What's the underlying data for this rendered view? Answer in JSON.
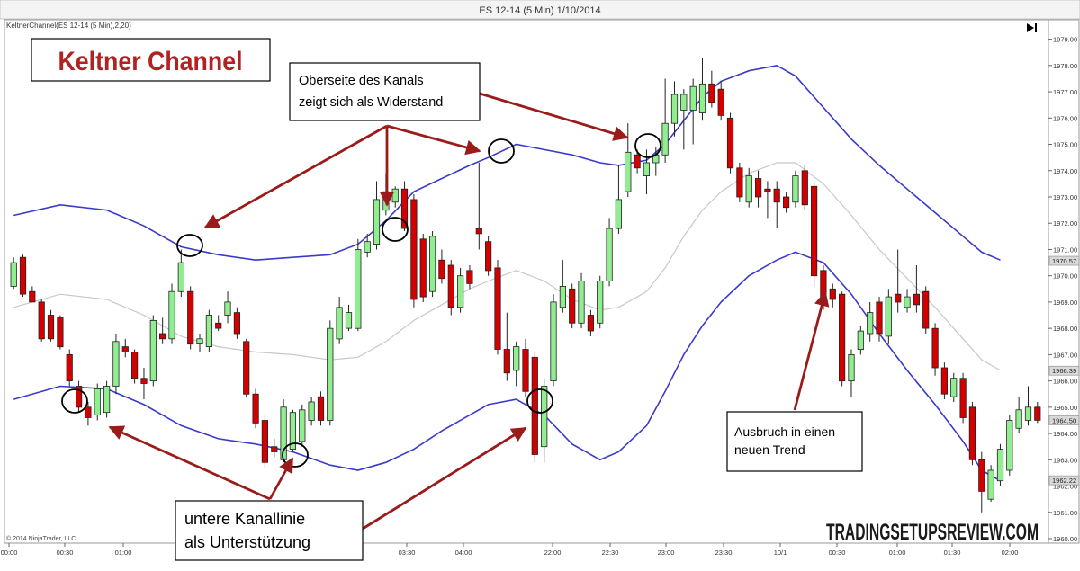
{
  "window": {
    "title": "ES 12-14 (5 Min)  1/10/2014",
    "indicator_label": "KeltnerChannel(ES 12-14 (5 Min),2,20)",
    "copyright": "© 2014 NinjaTrader, LLC",
    "play_icon": "play-icon"
  },
  "annotations": {
    "main_title": "Keltner Channel",
    "resistance_line1": "Oberseite des Kanals",
    "resistance_line2": "zeigt sich als Widerstand",
    "support_line1": "untere Kanallinie",
    "support_line2": "als Unterstützung",
    "breakout_line1": "Ausbruch in einen",
    "breakout_line2": "neuen Trend",
    "watermark": "TRADINGSETUPSREVIEW.COM"
  },
  "colors": {
    "up": "#90ee90",
    "down": "#d40000",
    "channel": "#3a3ac8",
    "midline": "#c8c8c8",
    "arrow": "#9b1b1b",
    "title": "#b22222"
  },
  "chart_data": {
    "type": "candlestick",
    "title": "ES 12-14 (5 Min)  1/10/2014",
    "ylim": [
      1960,
      1979.5
    ],
    "y_ticks": [
      "1960.00",
      "1961.00",
      "1962.00",
      "1963.00",
      "1964.00",
      "1965.00",
      "1966.00",
      "1967.00",
      "1968.00",
      "1969.00",
      "1970.00",
      "1971.00",
      "1972.00",
      "1973.00",
      "1974.00",
      "1975.00",
      "1976.00",
      "1977.00",
      "1978.00",
      "1979.00"
    ],
    "x_ticks": [
      "00:00",
      "00:30",
      "01:00",
      "03:30",
      "04:00",
      "22:00",
      "22:30",
      "23:00",
      "23:30",
      "10/1",
      "00:30",
      "01:00",
      "01:30",
      "02:00"
    ],
    "price_markers": [
      {
        "label": "1970.57",
        "value": 1970.57
      },
      {
        "label": "1966.39",
        "value": 1966.39
      },
      {
        "label": "1964.50",
        "value": 1964.5
      },
      {
        "label": "1962.22",
        "value": 1962.22
      }
    ],
    "candles": [
      {
        "o": 1969.6,
        "h": 1970.7,
        "l": 1969.5,
        "c": 1970.5
      },
      {
        "o": 1970.7,
        "h": 1970.8,
        "l": 1969.2,
        "c": 1969.3
      },
      {
        "o": 1969.4,
        "h": 1969.6,
        "l": 1969.0,
        "c": 1969.0
      },
      {
        "o": 1969.0,
        "h": 1969.1,
        "l": 1967.5,
        "c": 1967.6
      },
      {
        "o": 1968.5,
        "h": 1968.7,
        "l": 1967.5,
        "c": 1967.6
      },
      {
        "o": 1968.4,
        "h": 1968.5,
        "l": 1967.2,
        "c": 1967.3
      },
      {
        "o": 1967.0,
        "h": 1967.2,
        "l": 1965.8,
        "c": 1966.0
      },
      {
        "o": 1965.8,
        "h": 1966.0,
        "l": 1964.8,
        "c": 1965.0
      },
      {
        "o": 1965.0,
        "h": 1965.2,
        "l": 1964.3,
        "c": 1964.6
      },
      {
        "o": 1964.7,
        "h": 1965.9,
        "l": 1964.5,
        "c": 1965.7
      },
      {
        "o": 1964.8,
        "h": 1966.0,
        "l": 1964.6,
        "c": 1965.8
      },
      {
        "o": 1965.8,
        "h": 1967.8,
        "l": 1965.5,
        "c": 1967.5
      },
      {
        "o": 1967.3,
        "h": 1967.6,
        "l": 1966.9,
        "c": 1967.1
      },
      {
        "o": 1967.1,
        "h": 1967.2,
        "l": 1965.9,
        "c": 1966.1
      },
      {
        "o": 1966.1,
        "h": 1966.5,
        "l": 1965.3,
        "c": 1965.9
      },
      {
        "o": 1966.0,
        "h": 1968.5,
        "l": 1965.8,
        "c": 1968.3
      },
      {
        "o": 1967.8,
        "h": 1968.4,
        "l": 1967.4,
        "c": 1967.6
      },
      {
        "o": 1967.6,
        "h": 1969.7,
        "l": 1967.4,
        "c": 1969.4
      },
      {
        "o": 1969.4,
        "h": 1971.0,
        "l": 1969.2,
        "c": 1970.5
      },
      {
        "o": 1969.4,
        "h": 1969.6,
        "l": 1967.2,
        "c": 1967.4
      },
      {
        "o": 1967.4,
        "h": 1967.8,
        "l": 1967.1,
        "c": 1967.6
      },
      {
        "o": 1967.3,
        "h": 1968.7,
        "l": 1967.1,
        "c": 1968.5
      },
      {
        "o": 1968.2,
        "h": 1968.5,
        "l": 1967.9,
        "c": 1968.0
      },
      {
        "o": 1968.5,
        "h": 1969.4,
        "l": 1968.2,
        "c": 1969.0
      },
      {
        "o": 1968.6,
        "h": 1968.8,
        "l": 1967.6,
        "c": 1967.8
      },
      {
        "o": 1967.5,
        "h": 1967.6,
        "l": 1965.4,
        "c": 1965.5
      },
      {
        "o": 1965.5,
        "h": 1965.7,
        "l": 1964.2,
        "c": 1964.4
      },
      {
        "o": 1964.5,
        "h": 1964.7,
        "l": 1962.7,
        "c": 1962.9
      },
      {
        "o": 1963.5,
        "h": 1963.8,
        "l": 1963.1,
        "c": 1963.3
      },
      {
        "o": 1963.0,
        "h": 1965.3,
        "l": 1962.9,
        "c": 1965.0
      },
      {
        "o": 1963.4,
        "h": 1964.9,
        "l": 1963.3,
        "c": 1964.8
      },
      {
        "o": 1963.7,
        "h": 1965.1,
        "l": 1963.5,
        "c": 1964.9
      },
      {
        "o": 1964.5,
        "h": 1965.4,
        "l": 1964.3,
        "c": 1965.2
      },
      {
        "o": 1965.4,
        "h": 1965.6,
        "l": 1964.3,
        "c": 1964.5
      },
      {
        "o": 1964.5,
        "h": 1968.3,
        "l": 1964.3,
        "c": 1968.0
      },
      {
        "o": 1967.6,
        "h": 1969.2,
        "l": 1967.4,
        "c": 1968.8
      },
      {
        "o": 1968.0,
        "h": 1968.9,
        "l": 1967.9,
        "c": 1968.6
      },
      {
        "o": 1968.0,
        "h": 1971.4,
        "l": 1967.9,
        "c": 1971.0
      },
      {
        "o": 1970.9,
        "h": 1971.6,
        "l": 1970.7,
        "c": 1971.3
      },
      {
        "o": 1971.2,
        "h": 1973.6,
        "l": 1971.0,
        "c": 1972.9
      },
      {
        "o": 1972.5,
        "h": 1973.9,
        "l": 1972.3,
        "c": 1973.2
      },
      {
        "o": 1972.8,
        "h": 1973.4,
        "l": 1972.6,
        "c": 1973.3
      },
      {
        "o": 1973.3,
        "h": 1973.6,
        "l": 1971.7,
        "c": 1971.8
      },
      {
        "o": 1972.9,
        "h": 1973.1,
        "l": 1968.8,
        "c": 1969.1
      },
      {
        "o": 1971.4,
        "h": 1971.6,
        "l": 1969.0,
        "c": 1969.2
      },
      {
        "o": 1969.4,
        "h": 1971.7,
        "l": 1969.2,
        "c": 1971.5
      },
      {
        "o": 1970.6,
        "h": 1971.0,
        "l": 1969.7,
        "c": 1969.9
      },
      {
        "o": 1970.4,
        "h": 1970.6,
        "l": 1968.5,
        "c": 1968.8
      },
      {
        "o": 1968.8,
        "h": 1970.3,
        "l": 1968.6,
        "c": 1970.0
      },
      {
        "o": 1970.2,
        "h": 1970.4,
        "l": 1969.5,
        "c": 1969.7
      },
      {
        "o": 1971.8,
        "h": 1974.3,
        "l": 1971.0,
        "c": 1971.6
      },
      {
        "o": 1971.3,
        "h": 1971.5,
        "l": 1970.0,
        "c": 1970.2
      },
      {
        "o": 1970.3,
        "h": 1970.6,
        "l": 1967.0,
        "c": 1967.2
      },
      {
        "o": 1967.2,
        "h": 1968.6,
        "l": 1966.0,
        "c": 1966.3
      },
      {
        "o": 1966.4,
        "h": 1967.5,
        "l": 1965.8,
        "c": 1967.3
      },
      {
        "o": 1967.2,
        "h": 1967.6,
        "l": 1965.4,
        "c": 1965.6
      },
      {
        "o": 1966.9,
        "h": 1967.1,
        "l": 1962.9,
        "c": 1963.2
      },
      {
        "o": 1963.5,
        "h": 1966.1,
        "l": 1962.9,
        "c": 1965.8
      },
      {
        "o": 1966.0,
        "h": 1969.3,
        "l": 1965.8,
        "c": 1969.0
      },
      {
        "o": 1968.8,
        "h": 1970.6,
        "l": 1968.6,
        "c": 1969.6
      },
      {
        "o": 1969.5,
        "h": 1969.7,
        "l": 1968.0,
        "c": 1968.2
      },
      {
        "o": 1968.2,
        "h": 1970.1,
        "l": 1968.0,
        "c": 1969.8
      },
      {
        "o": 1968.5,
        "h": 1968.7,
        "l": 1967.7,
        "c": 1967.9
      },
      {
        "o": 1968.2,
        "h": 1970.0,
        "l": 1968.0,
        "c": 1969.8
      },
      {
        "o": 1969.8,
        "h": 1972.2,
        "l": 1969.6,
        "c": 1971.8
      },
      {
        "o": 1971.8,
        "h": 1974.2,
        "l": 1971.6,
        "c": 1972.9
      },
      {
        "o": 1973.2,
        "h": 1975.8,
        "l": 1973.0,
        "c": 1974.7
      },
      {
        "o": 1974.6,
        "h": 1974.8,
        "l": 1973.9,
        "c": 1974.1
      },
      {
        "o": 1973.8,
        "h": 1974.8,
        "l": 1973.1,
        "c": 1974.3
      },
      {
        "o": 1974.3,
        "h": 1974.9,
        "l": 1973.8,
        "c": 1974.6
      },
      {
        "o": 1974.6,
        "h": 1977.5,
        "l": 1974.3,
        "c": 1975.8
      },
      {
        "o": 1975.8,
        "h": 1977.4,
        "l": 1975.3,
        "c": 1976.9
      },
      {
        "o": 1976.3,
        "h": 1977.1,
        "l": 1974.8,
        "c": 1976.9
      },
      {
        "o": 1976.3,
        "h": 1977.5,
        "l": 1975.0,
        "c": 1977.2
      },
      {
        "o": 1976.2,
        "h": 1978.3,
        "l": 1975.9,
        "c": 1977.3
      },
      {
        "o": 1977.3,
        "h": 1977.8,
        "l": 1976.4,
        "c": 1976.6
      },
      {
        "o": 1977.1,
        "h": 1977.4,
        "l": 1975.9,
        "c": 1976.1
      },
      {
        "o": 1976.0,
        "h": 1976.2,
        "l": 1973.9,
        "c": 1974.1
      },
      {
        "o": 1974.1,
        "h": 1974.3,
        "l": 1972.8,
        "c": 1973.0
      },
      {
        "o": 1972.8,
        "h": 1974.1,
        "l": 1972.6,
        "c": 1973.8
      },
      {
        "o": 1973.7,
        "h": 1974.0,
        "l": 1972.6,
        "c": 1973.0
      },
      {
        "o": 1973.3,
        "h": 1973.6,
        "l": 1972.2,
        "c": 1973.2
      },
      {
        "o": 1973.3,
        "h": 1973.6,
        "l": 1971.8,
        "c": 1972.8
      },
      {
        "o": 1973.0,
        "h": 1973.2,
        "l": 1972.4,
        "c": 1972.6
      },
      {
        "o": 1972.8,
        "h": 1974.0,
        "l": 1972.6,
        "c": 1973.8
      },
      {
        "o": 1974.0,
        "h": 1974.2,
        "l": 1972.5,
        "c": 1972.7
      },
      {
        "o": 1973.4,
        "h": 1973.6,
        "l": 1969.6,
        "c": 1970.0
      },
      {
        "o": 1970.2,
        "h": 1970.4,
        "l": 1968.7,
        "c": 1969.0
      },
      {
        "o": 1969.5,
        "h": 1969.7,
        "l": 1968.8,
        "c": 1969.1
      },
      {
        "o": 1969.3,
        "h": 1969.4,
        "l": 1965.8,
        "c": 1966.0
      },
      {
        "o": 1966.0,
        "h": 1967.2,
        "l": 1965.4,
        "c": 1967.0
      },
      {
        "o": 1967.2,
        "h": 1968.1,
        "l": 1967.0,
        "c": 1967.9
      },
      {
        "o": 1967.8,
        "h": 1969.0,
        "l": 1967.5,
        "c": 1968.6
      },
      {
        "o": 1969.0,
        "h": 1969.2,
        "l": 1967.5,
        "c": 1967.8
      },
      {
        "o": 1967.7,
        "h": 1969.5,
        "l": 1967.4,
        "c": 1969.2
      },
      {
        "o": 1969.3,
        "h": 1971.0,
        "l": 1968.6,
        "c": 1969.0
      },
      {
        "o": 1968.8,
        "h": 1969.5,
        "l": 1968.6,
        "c": 1969.2
      },
      {
        "o": 1969.3,
        "h": 1970.4,
        "l": 1968.6,
        "c": 1968.9
      },
      {
        "o": 1969.4,
        "h": 1969.6,
        "l": 1967.8,
        "c": 1968.0
      },
      {
        "o": 1968.0,
        "h": 1968.2,
        "l": 1966.2,
        "c": 1966.5
      },
      {
        "o": 1966.5,
        "h": 1966.7,
        "l": 1965.3,
        "c": 1965.5
      },
      {
        "o": 1965.4,
        "h": 1966.3,
        "l": 1965.2,
        "c": 1966.1
      },
      {
        "o": 1966.1,
        "h": 1966.3,
        "l": 1964.4,
        "c": 1964.6
      },
      {
        "o": 1965.0,
        "h": 1965.2,
        "l": 1962.8,
        "c": 1963.0
      },
      {
        "o": 1963.0,
        "h": 1963.3,
        "l": 1961.0,
        "c": 1961.8
      },
      {
        "o": 1961.5,
        "h": 1962.8,
        "l": 1961.4,
        "c": 1962.6
      },
      {
        "o": 1962.2,
        "h": 1963.6,
        "l": 1962.0,
        "c": 1963.4
      },
      {
        "o": 1962.6,
        "h": 1964.7,
        "l": 1962.4,
        "c": 1964.5
      },
      {
        "o": 1964.2,
        "h": 1965.4,
        "l": 1964.0,
        "c": 1964.9
      },
      {
        "o": 1964.5,
        "h": 1965.8,
        "l": 1964.3,
        "c": 1965.0
      },
      {
        "o": 1965.0,
        "h": 1965.2,
        "l": 1964.4,
        "c": 1964.5
      }
    ],
    "upper_band": [
      [
        0,
        1972.3
      ],
      [
        5,
        1972.7
      ],
      [
        10,
        1972.5
      ],
      [
        14,
        1971.9
      ],
      [
        18,
        1971.1
      ],
      [
        22,
        1970.8
      ],
      [
        26,
        1970.6
      ],
      [
        30,
        1970.7
      ],
      [
        34,
        1970.8
      ],
      [
        37,
        1971.2
      ],
      [
        40,
        1972.1
      ],
      [
        43,
        1973.2
      ],
      [
        46,
        1973.7
      ],
      [
        49,
        1974.2
      ],
      [
        51,
        1974.5
      ],
      [
        54,
        1975.0
      ],
      [
        57,
        1974.8
      ],
      [
        60,
        1974.6
      ],
      [
        63,
        1974.3
      ],
      [
        65,
        1974.2
      ],
      [
        68,
        1974.4
      ],
      [
        70,
        1975.0
      ],
      [
        72,
        1975.9
      ],
      [
        74,
        1976.8
      ],
      [
        76,
        1977.4
      ],
      [
        79,
        1977.8
      ],
      [
        82,
        1978.0
      ],
      [
        84,
        1977.6
      ],
      [
        87,
        1976.4
      ],
      [
        90,
        1975.2
      ],
      [
        93,
        1974.2
      ],
      [
        96,
        1973.3
      ],
      [
        99,
        1972.4
      ],
      [
        102,
        1971.5
      ],
      [
        104,
        1970.9
      ],
      [
        106,
        1970.6
      ]
    ],
    "lower_band": [
      [
        0,
        1965.3
      ],
      [
        5,
        1965.8
      ],
      [
        10,
        1965.7
      ],
      [
        14,
        1965.1
      ],
      [
        18,
        1964.3
      ],
      [
        22,
        1963.8
      ],
      [
        26,
        1963.6
      ],
      [
        30,
        1963.3
      ],
      [
        34,
        1962.8
      ],
      [
        37,
        1962.6
      ],
      [
        40,
        1962.9
      ],
      [
        43,
        1963.4
      ],
      [
        46,
        1964.1
      ],
      [
        49,
        1964.7
      ],
      [
        51,
        1965.1
      ],
      [
        54,
        1965.3
      ],
      [
        57,
        1964.7
      ],
      [
        60,
        1963.6
      ],
      [
        63,
        1963.0
      ],
      [
        65,
        1963.3
      ],
      [
        68,
        1964.3
      ],
      [
        70,
        1965.6
      ],
      [
        72,
        1967.0
      ],
      [
        74,
        1968.1
      ],
      [
        76,
        1969.0
      ],
      [
        79,
        1970.0
      ],
      [
        82,
        1970.6
      ],
      [
        84,
        1970.9
      ],
      [
        87,
        1970.5
      ],
      [
        90,
        1969.3
      ],
      [
        93,
        1967.8
      ],
      [
        96,
        1966.4
      ],
      [
        99,
        1965.1
      ],
      [
        102,
        1963.7
      ],
      [
        104,
        1962.6
      ],
      [
        106,
        1962.2
      ]
    ],
    "mid_line": [
      [
        0,
        1968.8
      ],
      [
        5,
        1969.3
      ],
      [
        10,
        1969.1
      ],
      [
        14,
        1968.5
      ],
      [
        18,
        1967.7
      ],
      [
        22,
        1967.3
      ],
      [
        26,
        1967.1
      ],
      [
        30,
        1967.0
      ],
      [
        34,
        1966.8
      ],
      [
        37,
        1966.9
      ],
      [
        40,
        1967.5
      ],
      [
        43,
        1968.3
      ],
      [
        46,
        1968.9
      ],
      [
        49,
        1969.5
      ],
      [
        51,
        1969.8
      ],
      [
        54,
        1970.2
      ],
      [
        57,
        1969.8
      ],
      [
        60,
        1969.1
      ],
      [
        63,
        1968.7
      ],
      [
        65,
        1968.8
      ],
      [
        68,
        1969.4
      ],
      [
        70,
        1970.3
      ],
      [
        72,
        1971.5
      ],
      [
        74,
        1972.5
      ],
      [
        76,
        1973.2
      ],
      [
        79,
        1973.9
      ],
      [
        82,
        1974.3
      ],
      [
        84,
        1974.3
      ],
      [
        87,
        1973.5
      ],
      [
        90,
        1972.3
      ],
      [
        93,
        1971.0
      ],
      [
        96,
        1969.9
      ],
      [
        99,
        1968.8
      ],
      [
        102,
        1967.6
      ],
      [
        104,
        1966.8
      ],
      [
        106,
        1966.4
      ]
    ]
  }
}
